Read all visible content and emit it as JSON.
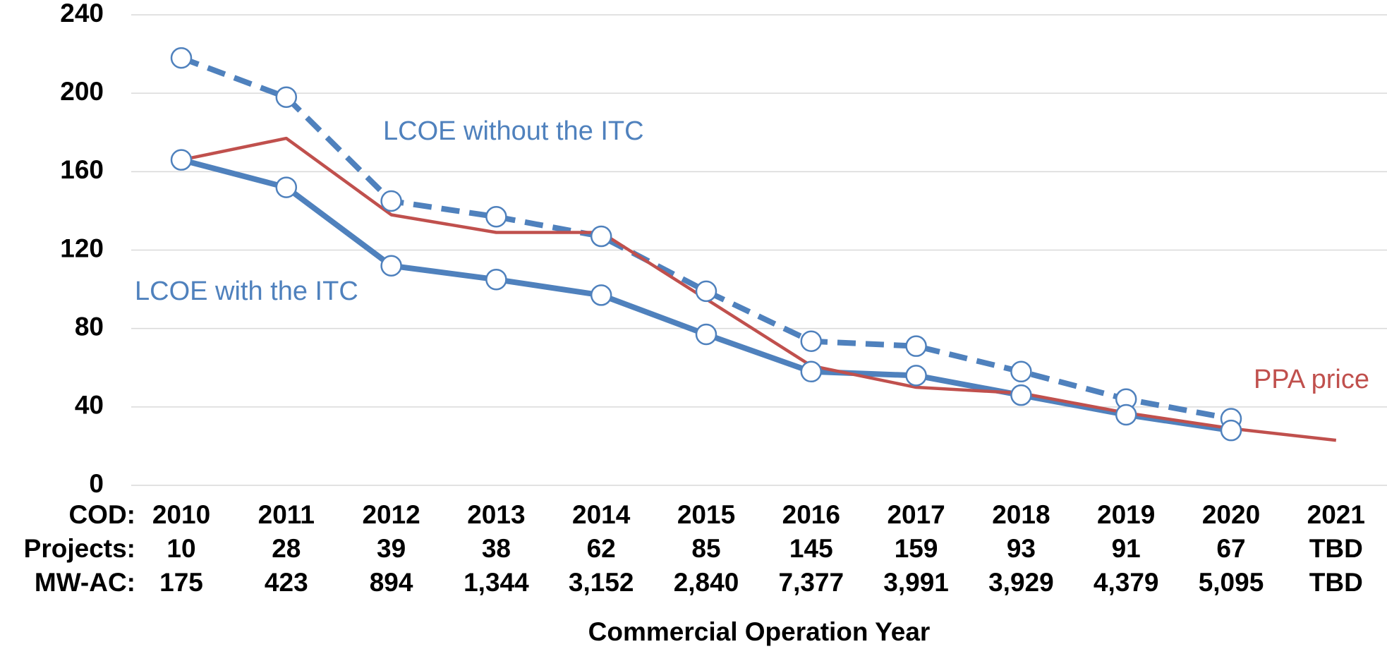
{
  "chart_data": {
    "type": "line",
    "x_label": "Commercial Operation Year",
    "categories": [
      "2010",
      "2011",
      "2012",
      "2013",
      "2014",
      "2015",
      "2016",
      "2017",
      "2018",
      "2019",
      "2020",
      "2021"
    ],
    "category_label": "COD:",
    "ylim": [
      0,
      240
    ],
    "yticks": [
      0,
      40,
      80,
      120,
      160,
      200,
      240
    ],
    "grid": true,
    "series": [
      {
        "name": "LCOE without the ITC",
        "color": "#4f81bd",
        "dashed": true,
        "markers": true,
        "values": [
          218,
          198,
          145,
          137,
          127,
          99,
          73.5,
          71,
          58,
          44,
          34,
          null
        ]
      },
      {
        "name": "LCOE with the ITC",
        "color": "#4f81bd",
        "dashed": false,
        "markers": true,
        "values": [
          166,
          152,
          112,
          105,
          97,
          77,
          58,
          56,
          46,
          36,
          28,
          null
        ]
      },
      {
        "name": "PPA price",
        "color": "#c0504d",
        "dashed": false,
        "markers": false,
        "values": [
          166,
          177,
          138,
          129,
          129,
          95,
          61,
          50,
          47,
          37,
          29,
          23
        ]
      }
    ],
    "table_rows": [
      {
        "label": "Projects:",
        "values": [
          "10",
          "28",
          "39",
          "38",
          "62",
          "85",
          "145",
          "159",
          "93",
          "91",
          "67",
          "TBD"
        ]
      },
      {
        "label": "MW-AC:",
        "values": [
          "175",
          "423",
          "894",
          "1,344",
          "3,152",
          "2,840",
          "7,377",
          "3,991",
          "3,929",
          "4,379",
          "5,095",
          "TBD"
        ]
      }
    ]
  }
}
